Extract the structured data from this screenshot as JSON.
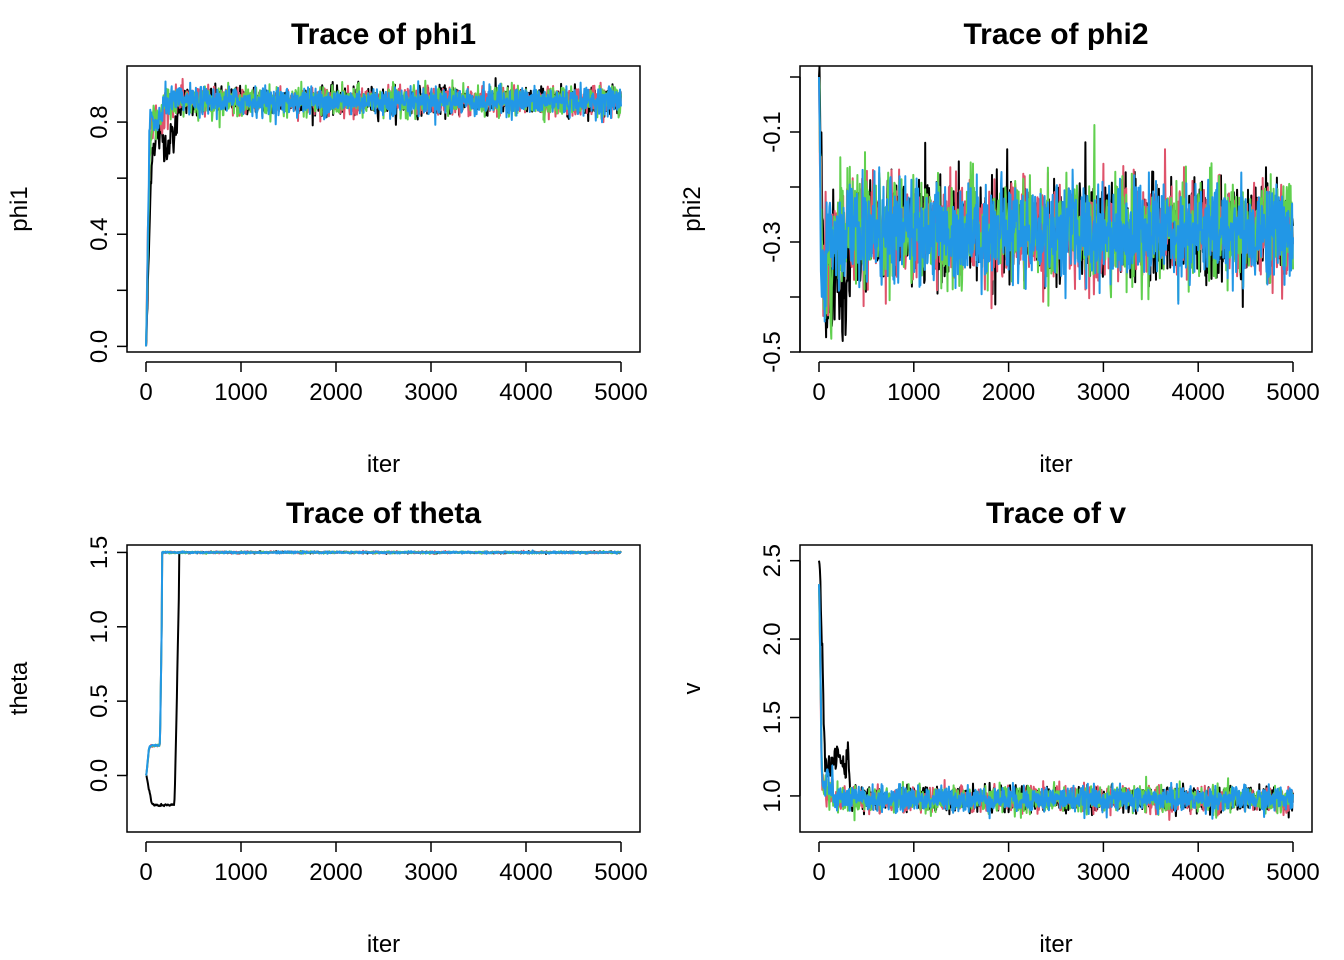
{
  "colors": [
    "#000000",
    "#DF536B",
    "#61D04F",
    "#2297E6"
  ],
  "chart_data": [
    {
      "type": "line",
      "title": "Trace of phi1",
      "xlabel": "iter",
      "ylabel": "phi1",
      "xlim": [
        0,
        5000
      ],
      "ylim": [
        -0.02,
        1.0
      ],
      "xticks": [
        0,
        1000,
        2000,
        3000,
        4000,
        5000
      ],
      "xtick_labels": [
        "0",
        "1000",
        "2000",
        "3000",
        "4000",
        "5000"
      ],
      "yticks": [
        0.0,
        0.2,
        0.4,
        0.6,
        0.8
      ],
      "ytick_labels": [
        "0.0",
        "",
        "0.4",
        "",
        "0.8"
      ],
      "n_iter": 5000,
      "series": [
        {
          "start": 0.0,
          "burnin_end": 350,
          "burnin_level": 0.74,
          "mean": 0.875,
          "sd": 0.025
        },
        {
          "start": 0.0,
          "burnin_end": 200,
          "burnin_level": 0.8,
          "mean": 0.875,
          "sd": 0.025
        },
        {
          "start": 0.0,
          "burnin_end": 200,
          "burnin_level": 0.8,
          "mean": 0.875,
          "sd": 0.025
        },
        {
          "start": 0.0,
          "burnin_end": 200,
          "burnin_level": 0.8,
          "mean": 0.875,
          "sd": 0.025
        }
      ]
    },
    {
      "type": "line",
      "title": "Trace of phi2",
      "xlabel": "iter",
      "ylabel": "phi2",
      "xlim": [
        0,
        5000
      ],
      "ylim": [
        -0.5,
        0.02
      ],
      "xticks": [
        0,
        1000,
        2000,
        3000,
        4000,
        5000
      ],
      "xtick_labels": [
        "0",
        "1000",
        "2000",
        "3000",
        "4000",
        "5000"
      ],
      "yticks": [
        -0.5,
        -0.4,
        -0.3,
        -0.2,
        -0.1,
        0.0
      ],
      "ytick_labels": [
        "-0.5",
        "",
        "-0.3",
        "",
        "-0.1",
        ""
      ],
      "n_iter": 5000,
      "series": [
        {
          "start": 0.0,
          "burnin_end": 350,
          "burnin_level": -0.38,
          "mean": -0.28,
          "sd": 0.045
        },
        {
          "start": 0.0,
          "burnin_end": 150,
          "burnin_level": -0.33,
          "mean": -0.28,
          "sd": 0.045
        },
        {
          "start": 0.0,
          "burnin_end": 150,
          "burnin_level": -0.33,
          "mean": -0.28,
          "sd": 0.045
        },
        {
          "start": 0.0,
          "burnin_end": 150,
          "burnin_level": -0.33,
          "mean": -0.28,
          "sd": 0.045
        }
      ]
    },
    {
      "type": "line",
      "title": "Trace of theta",
      "xlabel": "iter",
      "ylabel": "theta",
      "xlim": [
        0,
        5000
      ],
      "ylim": [
        -0.38,
        1.55
      ],
      "xticks": [
        0,
        1000,
        2000,
        3000,
        4000,
        5000
      ],
      "xtick_labels": [
        "0",
        "1000",
        "2000",
        "3000",
        "4000",
        "5000"
      ],
      "yticks": [
        0.0,
        0.5,
        1.0,
        1.5
      ],
      "ytick_labels": [
        "0.0",
        "0.5",
        "1.0",
        "1.5"
      ],
      "n_iter": 5000,
      "series": [
        {
          "start": 0.0,
          "burnin_end": 350,
          "burnin_level": -0.2,
          "mean": 1.5,
          "sd": 0.003
        },
        {
          "start": 0.0,
          "burnin_end": 170,
          "burnin_level": 0.2,
          "mean": 1.5,
          "sd": 0.003
        },
        {
          "start": 0.0,
          "burnin_end": 170,
          "burnin_level": 0.2,
          "mean": 1.5,
          "sd": 0.003
        },
        {
          "start": 0.0,
          "burnin_end": 170,
          "burnin_level": 0.2,
          "mean": 1.5,
          "sd": 0.003
        }
      ]
    },
    {
      "type": "line",
      "title": "Trace of v",
      "xlabel": "iter",
      "ylabel": "v",
      "xlim": [
        0,
        5000
      ],
      "ylim": [
        0.77,
        2.6
      ],
      "xticks": [
        0,
        1000,
        2000,
        3000,
        4000,
        5000
      ],
      "xtick_labels": [
        "0",
        "1000",
        "2000",
        "3000",
        "4000",
        "5000"
      ],
      "yticks": [
        1.0,
        1.5,
        2.0,
        2.5
      ],
      "ytick_labels": [
        "1.0",
        "1.5",
        "2.0",
        "2.5"
      ],
      "n_iter": 5000,
      "series": [
        {
          "start": 2.5,
          "burnin_end": 350,
          "burnin_level": 1.22,
          "mean": 0.98,
          "sd": 0.04
        },
        {
          "start": 2.35,
          "burnin_end": 150,
          "burnin_level": 1.05,
          "mean": 0.98,
          "sd": 0.04
        },
        {
          "start": 2.35,
          "burnin_end": 150,
          "burnin_level": 1.05,
          "mean": 0.98,
          "sd": 0.04
        },
        {
          "start": 2.35,
          "burnin_end": 150,
          "burnin_level": 1.05,
          "mean": 0.98,
          "sd": 0.04
        }
      ]
    }
  ]
}
